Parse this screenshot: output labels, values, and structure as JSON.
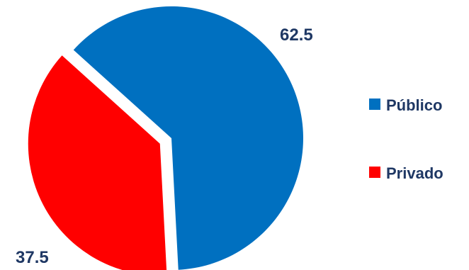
{
  "chart_data": {
    "type": "pie",
    "title": "",
    "categories": [
      "Público",
      "Privado"
    ],
    "values": [
      62.5,
      37.5
    ],
    "data_labels": [
      "62.5",
      "37.5"
    ],
    "colors": [
      "#0070C0",
      "#FF0000"
    ],
    "exploded": "Privado",
    "legend": {
      "position": "right",
      "entries": [
        "Público",
        "Privado"
      ]
    }
  }
}
